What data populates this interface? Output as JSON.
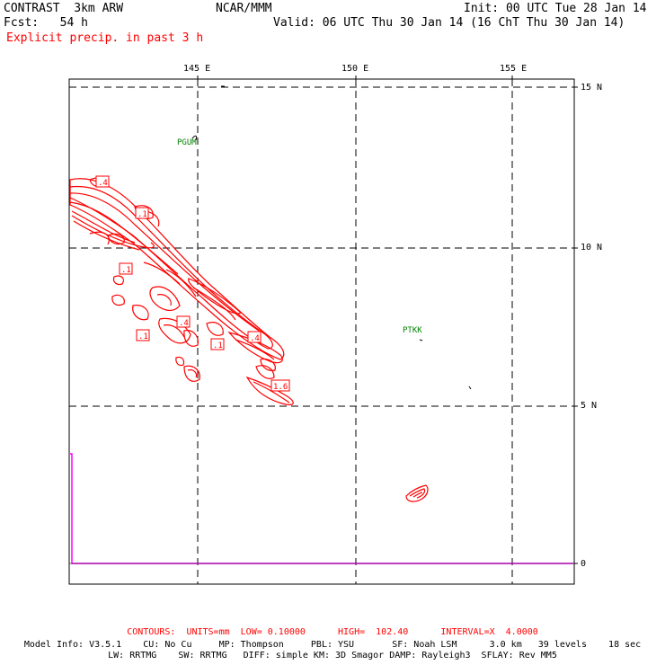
{
  "header": {
    "model": "CONTRAST  3km ARW",
    "center": "NCAR/MMM",
    "init": "Init: 00 UTC Tue 28 Jan 14",
    "fcst": "Fcst:   54 h",
    "valid": "Valid: 06 UTC Thu 30 Jan 14 (16 ChT Thu 30 Jan 14)",
    "field": "Explicit precip. in past 3 h"
  },
  "map": {
    "lon_labels": [
      "145 E",
      "150 E",
      "155 E"
    ],
    "lat_labels": [
      "15 N",
      "10 N",
      "5 N"
    ],
    "colorbar_label": "0",
    "stations": [
      {
        "id": "PGUM"
      },
      {
        "id": "PTKK"
      }
    ],
    "contour_labels": [
      ".4",
      ".1",
      ".1",
      ".4",
      ".1",
      ".1",
      ".4",
      "1.6"
    ],
    "colors": {
      "contour": "#ff0000",
      "station": "#008000",
      "timeseries": "#ff00ff",
      "grid": "#000000"
    }
  },
  "footer": {
    "contours": "CONTOURS:  UNITS=mm  LOW= 0.10000      HIGH=  102.40      INTERVAL=X  4.0000",
    "model_info_1": "Model Info: V3.5.1    CU: No Cu     MP: Thompson     PBL: YSU       SF: Noah LSM      3.0 km   39 levels    18 sec",
    "model_info_2": "LW: RRTMG    SW: RRTMG   DIFF: simple KM: 3D Smagor DAMP: Rayleigh3  SFLAY: Rev MM5"
  }
}
